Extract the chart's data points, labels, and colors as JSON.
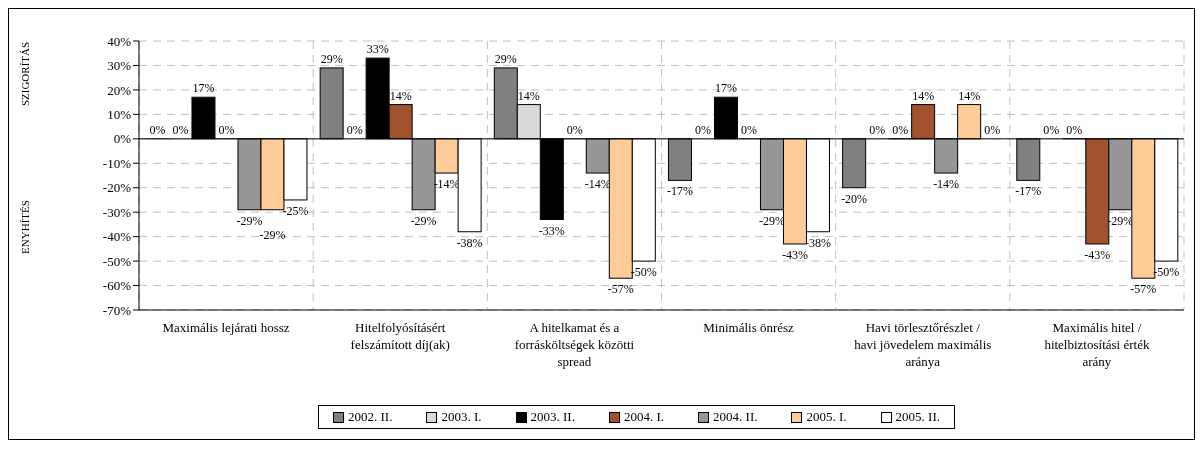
{
  "chart_data": {
    "type": "bar",
    "categories": [
      "Maximális lejárati hossz",
      "Hitelfolyósításért felszámított díj(ak)",
      "A hitelkamat és a forrásköltségek közötti spread",
      "Minimális önrész",
      "Havi törlesztőrészlet / havi jövedelem maximális aránya",
      "Maximális hitel / hitelbiztosítási érték arány"
    ],
    "series": [
      {
        "name": "2002. II.",
        "color": "#808080",
        "values": [
          0,
          29,
          29,
          -17,
          -20,
          -17
        ],
        "value_labels": [
          "0%",
          "29%",
          "29%",
          "-17%",
          "-20%",
          "-17%"
        ]
      },
      {
        "name": "2003. I.",
        "color": "#d9d9d9",
        "values": [
          0,
          0,
          14,
          0,
          0,
          0
        ],
        "value_labels": [
          "0%",
          "0%",
          "14%",
          "0%",
          "0%",
          "0%"
        ]
      },
      {
        "name": "2003. II.",
        "color": "#000000",
        "values": [
          17,
          33,
          -33,
          17,
          0,
          0
        ],
        "value_labels": [
          "17%",
          "33%",
          "-33%",
          "17%",
          "0%",
          "0%"
        ]
      },
      {
        "name": "2004. I.",
        "color": "#a0522d",
        "values": [
          0,
          14,
          0,
          0,
          14,
          -43
        ],
        "value_labels": [
          "0%",
          "14%",
          "0%",
          "0%",
          "14%",
          "-43%"
        ]
      },
      {
        "name": "2004. II.",
        "color": "#969696",
        "values": [
          -29,
          -29,
          -14,
          -29,
          -14,
          -29
        ],
        "value_labels": [
          "-29%",
          "-29%",
          "-14%",
          "-29%",
          "-14%",
          "-29%"
        ]
      },
      {
        "name": "2005. I.",
        "color": "#ffcc99",
        "values": [
          -29,
          -14,
          -57,
          -43,
          14,
          -57
        ],
        "value_labels": [
          "-29%",
          "-14%",
          "-57%",
          "-43%",
          "14%",
          "-57%"
        ]
      },
      {
        "name": "2005. II.",
        "color": "#ffffff",
        "values": [
          -25,
          -38,
          -50,
          -38,
          0,
          -50
        ],
        "value_labels": [
          "-25%",
          "-38%",
          "-50%",
          "-38%",
          "0%",
          "-50%"
        ]
      }
    ],
    "ylim": [
      -70,
      40
    ],
    "yticks": [
      {
        "value": -70,
        "label": "-70%"
      },
      {
        "value": -60,
        "label": "-60%"
      },
      {
        "value": -50,
        "label": "-50%"
      },
      {
        "value": -40,
        "label": "-40%"
      },
      {
        "value": -30,
        "label": "-30%"
      },
      {
        "value": -20,
        "label": "-20%"
      },
      {
        "value": -10,
        "label": "-10%"
      },
      {
        "value": 0,
        "label": "0%"
      },
      {
        "value": 10,
        "label": "10%"
      },
      {
        "value": 20,
        "label": "20%"
      },
      {
        "value": 30,
        "label": "30%"
      },
      {
        "value": 40,
        "label": "40%"
      }
    ],
    "annotations": [
      "SZIGORÍTÁS",
      "ENYHÍTÉS"
    ],
    "grid": true,
    "legend": "bottom"
  }
}
